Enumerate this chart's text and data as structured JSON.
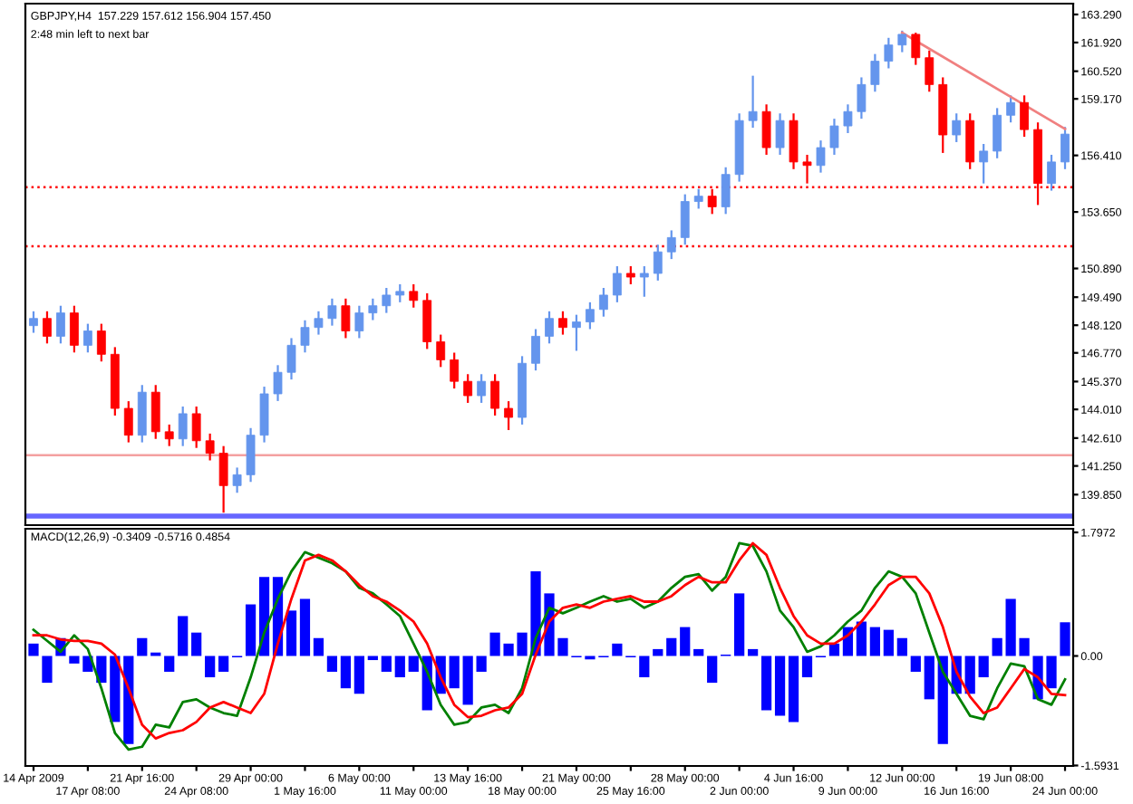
{
  "chart_data": [
    {
      "type": "candlestick",
      "title": "GBPJPY,H4  157.229 157.612 156.904 157.450",
      "subtitle": "2:48 min left to next bar",
      "categories": [
        null,
        null,
        null,
        null,
        null,
        null,
        null,
        null,
        null,
        null,
        null,
        null,
        null,
        null,
        null,
        null,
        null,
        null,
        null,
        null,
        null,
        null,
        null,
        null,
        null,
        null,
        null,
        null,
        null,
        null,
        null,
        null,
        null,
        null,
        null,
        null,
        null,
        null,
        null,
        null,
        null,
        null,
        null,
        null,
        null,
        null,
        null,
        null,
        null,
        null,
        null,
        null,
        null,
        null,
        null,
        null,
        null,
        null,
        null,
        null,
        null,
        null,
        null,
        null,
        null,
        null,
        null,
        null,
        null,
        null,
        null,
        null,
        null,
        null,
        null,
        null,
        null
      ],
      "ohlc": [
        [
          148.1,
          148.8,
          147.75,
          148.45
        ],
        [
          148.45,
          148.8,
          147.23,
          147.58
        ],
        [
          147.58,
          149.07,
          147.23,
          148.72
        ],
        [
          148.72,
          149.07,
          146.79,
          147.14
        ],
        [
          147.14,
          148.19,
          146.79,
          147.84
        ],
        [
          147.84,
          148.19,
          146.35,
          146.7
        ],
        [
          146.7,
          147.05,
          143.71,
          144.06
        ],
        [
          144.06,
          144.41,
          142.4,
          142.75
        ],
        [
          142.75,
          145.2,
          142.4,
          144.85
        ],
        [
          144.85,
          145.2,
          142.57,
          142.92
        ],
        [
          142.92,
          143.27,
          142.22,
          142.57
        ],
        [
          142.57,
          144.15,
          142.22,
          143.8
        ],
        [
          143.8,
          144.15,
          142.13,
          142.48
        ],
        [
          142.48,
          142.83,
          141.52,
          141.87
        ],
        [
          141.87,
          142.22,
          138.97,
          140.29
        ],
        [
          140.29,
          141.17,
          139.94,
          140.82
        ],
        [
          140.82,
          143.1,
          140.47,
          142.75
        ],
        [
          142.75,
          145.12,
          142.4,
          144.77
        ],
        [
          144.77,
          146.17,
          144.42,
          145.82
        ],
        [
          145.82,
          147.49,
          145.47,
          147.14
        ],
        [
          147.14,
          148.36,
          146.79,
          148.01
        ],
        [
          148.01,
          148.8,
          147.66,
          148.45
        ],
        [
          148.45,
          149.42,
          148.1,
          149.07
        ],
        [
          149.07,
          149.42,
          147.49,
          147.84
        ],
        [
          147.84,
          149.07,
          147.49,
          148.72
        ],
        [
          148.72,
          149.42,
          148.37,
          149.07
        ],
        [
          149.07,
          149.94,
          148.72,
          149.59
        ],
        [
          149.59,
          150.12,
          149.24,
          149.77
        ],
        [
          149.77,
          150.12,
          148.98,
          149.33
        ],
        [
          149.33,
          149.68,
          146.96,
          147.31
        ],
        [
          147.31,
          147.66,
          146.08,
          146.43
        ],
        [
          146.43,
          146.78,
          145.03,
          145.38
        ],
        [
          145.38,
          145.73,
          144.33,
          144.68
        ],
        [
          144.68,
          145.73,
          144.33,
          145.38
        ],
        [
          145.38,
          145.73,
          143.71,
          144.06
        ],
        [
          144.06,
          144.41,
          143.0,
          143.62
        ],
        [
          143.62,
          146.61,
          143.27,
          146.26
        ],
        [
          146.26,
          147.93,
          145.91,
          147.58
        ],
        [
          147.58,
          148.8,
          147.23,
          148.45
        ],
        [
          148.45,
          148.8,
          147.66,
          148.01
        ],
        [
          148.01,
          148.63,
          146.87,
          148.28
        ],
        [
          148.28,
          149.24,
          147.93,
          148.89
        ],
        [
          148.89,
          149.94,
          148.54,
          149.59
        ],
        [
          149.59,
          151.0,
          149.24,
          150.65
        ],
        [
          150.65,
          151.0,
          150.12,
          150.47
        ],
        [
          150.47,
          151.0,
          149.51,
          150.65
        ],
        [
          150.65,
          152.05,
          150.3,
          151.7
        ],
        [
          151.7,
          152.75,
          151.35,
          152.4
        ],
        [
          152.4,
          154.51,
          152.05,
          154.16
        ],
        [
          154.16,
          154.77,
          153.81,
          154.42
        ],
        [
          154.42,
          154.77,
          153.55,
          153.9
        ],
        [
          153.9,
          155.83,
          153.55,
          155.48
        ],
        [
          155.48,
          158.46,
          155.13,
          158.11
        ],
        [
          158.11,
          160.3,
          157.76,
          158.55
        ],
        [
          158.55,
          158.9,
          156.44,
          156.79
        ],
        [
          156.79,
          158.46,
          156.44,
          158.11
        ],
        [
          158.11,
          158.46,
          155.74,
          156.09
        ],
        [
          156.09,
          156.44,
          155.04,
          155.92
        ],
        [
          155.92,
          157.14,
          155.57,
          156.79
        ],
        [
          156.79,
          158.2,
          156.44,
          157.85
        ],
        [
          157.85,
          158.9,
          157.5,
          158.55
        ],
        [
          158.55,
          160.22,
          158.2,
          159.87
        ],
        [
          159.87,
          161.36,
          159.52,
          161.01
        ],
        [
          161.01,
          162.15,
          160.66,
          161.8
        ],
        [
          161.8,
          162.5,
          161.45,
          162.32
        ],
        [
          162.32,
          162.4,
          160.83,
          161.18
        ],
        [
          161.18,
          161.53,
          159.52,
          159.87
        ],
        [
          159.87,
          160.22,
          156.53,
          157.41
        ],
        [
          157.41,
          158.46,
          157.06,
          158.11
        ],
        [
          158.11,
          158.46,
          155.74,
          156.09
        ],
        [
          156.09,
          156.97,
          155.04,
          156.62
        ],
        [
          156.62,
          158.72,
          156.27,
          158.37
        ],
        [
          158.37,
          159.34,
          158.02,
          158.99
        ],
        [
          158.99,
          159.34,
          157.32,
          157.67
        ],
        [
          157.67,
          158.02,
          153.99,
          155.04
        ],
        [
          155.04,
          156.44,
          154.69,
          156.09
        ],
        [
          156.09,
          157.8,
          155.74,
          157.45
        ]
      ],
      "colors": [
        "#6495ed",
        "#ff0000",
        "#6495ed",
        "#ff0000",
        "#6495ed",
        "#ff0000",
        "#ff0000",
        "#ff0000",
        "#6495ed",
        "#ff0000",
        "#ff0000",
        "#6495ed",
        "#ff0000",
        "#ff0000",
        "#ff0000",
        "#6495ed",
        "#6495ed",
        "#6495ed",
        "#6495ed",
        "#6495ed",
        "#6495ed",
        "#6495ed",
        "#6495ed",
        "#ff0000",
        "#6495ed",
        "#6495ed",
        "#6495ed",
        "#6495ed",
        "#ff0000",
        "#ff0000",
        "#ff0000",
        "#ff0000",
        "#ff0000",
        "#6495ed",
        "#ff0000",
        "#ff0000",
        "#6495ed",
        "#6495ed",
        "#6495ed",
        "#ff0000",
        "#6495ed",
        "#6495ed",
        "#6495ed",
        "#6495ed",
        "#ff0000",
        "#6495ed",
        "#6495ed",
        "#6495ed",
        "#6495ed",
        "#6495ed",
        "#ff0000",
        "#6495ed",
        "#6495ed",
        "#6495ed",
        "#ff0000",
        "#6495ed",
        "#ff0000",
        "#ff0000",
        "#6495ed",
        "#6495ed",
        "#6495ed",
        "#6495ed",
        "#6495ed",
        "#6495ed",
        "#6495ed",
        "#ff0000",
        "#ff0000",
        "#ff0000",
        "#6495ed",
        "#ff0000",
        "#6495ed",
        "#6495ed",
        "#6495ed",
        "#ff0000",
        "#ff0000",
        "#6495ed",
        "#6495ed"
      ],
      "series": [
        {
          "type": "line",
          "color": "#f08080",
          "values": [
            null,
            null,
            null,
            null,
            null,
            null,
            null,
            null,
            null,
            null,
            null,
            null,
            null,
            null,
            null,
            null,
            null,
            null,
            null,
            null,
            null,
            null,
            null,
            null,
            null,
            null,
            null,
            null,
            null,
            null,
            null,
            null,
            null,
            null,
            null,
            null,
            null,
            null,
            null,
            null,
            null,
            null,
            null,
            null,
            null,
            null,
            null,
            null,
            null,
            null,
            null,
            null,
            null,
            null,
            null,
            null,
            null,
            null,
            null,
            null,
            null,
            null,
            null,
            null,
            162.4,
            null,
            null,
            null,
            null,
            null,
            null,
            null,
            null,
            null,
            null,
            null,
            157.7
          ]
        }
      ],
      "ref_lines": [
        {
          "axis": "y",
          "value": 154.86,
          "label": null,
          "color": "#ff0000",
          "line_style": "dotted"
        },
        {
          "axis": "y",
          "value": 151.97,
          "label": null,
          "color": "#ff0000",
          "line_style": "dotted"
        },
        {
          "axis": "y",
          "value": 141.78,
          "label": null,
          "color": "#f4a0a0",
          "line_style": "solid"
        },
        {
          "axis": "y",
          "value": 138.8,
          "label": null,
          "color": "#6666ff",
          "line_style": "solid"
        }
      ],
      "ylim": [
        138.36,
        163.82
      ],
      "yticks": [
        {
          "value": 163.29,
          "label": "163.290"
        },
        {
          "value": 161.92,
          "label": "161.920"
        },
        {
          "value": 160.52,
          "label": "160.520"
        },
        {
          "value": 159.17,
          "label": "159.170"
        },
        {
          "value": 156.41,
          "label": "156.410"
        },
        {
          "value": 153.65,
          "label": "153.650"
        },
        {
          "value": 150.89,
          "label": "150.890"
        },
        {
          "value": 149.49,
          "label": "149.490"
        },
        {
          "value": 148.12,
          "label": "148.120"
        },
        {
          "value": 146.77,
          "label": "146.770"
        },
        {
          "value": 145.37,
          "label": "145.370"
        },
        {
          "value": 144.01,
          "label": "144.010"
        },
        {
          "value": 142.61,
          "label": "142.610"
        },
        {
          "value": 141.25,
          "label": "141.250"
        },
        {
          "value": 139.85,
          "label": "139.850"
        }
      ],
      "tick_labels": "y",
      "grid": false,
      "legend": false
    },
    {
      "type": "bar",
      "title": "MACD(12,26,9) -0.3409 -0.5716 0.4854",
      "categories": [
        "14 Apr 2009",
        null,
        null,
        null,
        "17 Apr 08:00",
        null,
        null,
        null,
        "21 Apr 16:00",
        null,
        null,
        null,
        "24 Apr 08:00",
        null,
        null,
        null,
        "29 Apr 00:00",
        null,
        null,
        null,
        "1 May 16:00",
        null,
        null,
        null,
        "6 May 00:00",
        null,
        null,
        null,
        "11 May 00:00",
        null,
        null,
        null,
        "13 May 16:00",
        null,
        null,
        null,
        "18 May 00:00",
        null,
        null,
        null,
        "21 May 00:00",
        null,
        null,
        null,
        "25 May 16:00",
        null,
        null,
        null,
        "28 May 00:00",
        null,
        null,
        null,
        "2 Jun 00:00",
        null,
        null,
        null,
        "4 Jun 16:00",
        null,
        null,
        null,
        "9 Jun 00:00",
        null,
        null,
        null,
        "12 Jun 00:00",
        null,
        null,
        null,
        "16 Jun 16:00",
        null,
        null,
        null,
        "19 Jun 08:00",
        null,
        null,
        null,
        "24 Jun 00:00"
      ],
      "series": [
        {
          "type": "bar",
          "color": "#0000ff",
          "values": [
            0.18,
            -0.39,
            0.26,
            -0.11,
            -0.23,
            -0.39,
            -0.96,
            -1.28,
            0.26,
            0.05,
            -0.23,
            0.58,
            0.34,
            -0.31,
            -0.23,
            -0.02,
            0.75,
            1.15,
            1.15,
            0.66,
            0.83,
            0.26,
            -0.23,
            -0.47,
            -0.55,
            -0.06,
            -0.23,
            -0.31,
            -0.23,
            -0.79,
            -0.55,
            -0.47,
            -0.71,
            -0.23,
            0.34,
            0.18,
            0.34,
            1.23,
            0.91,
            0.26,
            -0.02,
            -0.05,
            -0.02,
            0.18,
            -0.02,
            -0.31,
            0.1,
            0.26,
            0.42,
            0.1,
            -0.39,
            0.02,
            0.91,
            0.1,
            -0.79,
            -0.87,
            -0.96,
            -0.31,
            -0.02,
            0.18,
            0.42,
            0.5,
            0.42,
            0.38,
            0.26,
            -0.23,
            -0.63,
            -1.28,
            -0.55,
            -0.55,
            -0.31,
            0.26,
            0.83,
            0.26,
            -0.63,
            -0.47,
            0.49
          ]
        },
        {
          "type": "line",
          "color": "#008000",
          "values": [
            0.38,
            0.22,
            0.06,
            0.3,
            0.1,
            -0.47,
            -1.12,
            -1.36,
            -1.32,
            -1.0,
            -1.04,
            -0.67,
            -0.63,
            -0.75,
            -0.83,
            -0.87,
            -0.31,
            0.34,
            0.83,
            1.23,
            1.51,
            1.43,
            1.35,
            1.23,
            0.99,
            0.91,
            0.75,
            0.58,
            0.18,
            -0.23,
            -0.71,
            -1.0,
            -0.96,
            -0.75,
            -0.71,
            -0.83,
            -0.47,
            0.26,
            0.7,
            0.62,
            0.7,
            0.79,
            0.87,
            0.79,
            0.83,
            0.7,
            0.79,
            0.99,
            1.15,
            1.19,
            0.95,
            1.15,
            1.64,
            1.6,
            1.23,
            0.66,
            0.42,
            0.06,
            0.14,
            0.3,
            0.5,
            0.66,
            0.99,
            1.23,
            1.15,
            0.91,
            0.34,
            -0.23,
            -0.55,
            -0.87,
            -0.92,
            -0.47,
            -0.11,
            -0.15,
            -0.63,
            -0.71,
            -0.34
          ]
        },
        {
          "type": "line",
          "color": "#ff0000",
          "values": [
            0.3,
            0.3,
            0.24,
            0.22,
            0.22,
            0.18,
            0.02,
            -0.47,
            -1.0,
            -1.2,
            -1.12,
            -1.08,
            -0.96,
            -0.75,
            -0.67,
            -0.75,
            -0.83,
            -0.55,
            0.18,
            0.83,
            1.39,
            1.47,
            1.39,
            1.23,
            1.03,
            0.87,
            0.79,
            0.66,
            0.5,
            0.18,
            -0.31,
            -0.71,
            -0.89,
            -0.87,
            -0.79,
            -0.75,
            -0.55,
            0.02,
            0.5,
            0.7,
            0.75,
            0.7,
            0.79,
            0.83,
            0.87,
            0.79,
            0.79,
            0.87,
            1.03,
            1.15,
            1.07,
            1.07,
            1.39,
            1.64,
            1.47,
            0.99,
            0.58,
            0.3,
            0.18,
            0.18,
            0.3,
            0.5,
            0.75,
            1.03,
            1.15,
            1.15,
            0.91,
            0.42,
            -0.23,
            -0.59,
            -0.83,
            -0.75,
            -0.47,
            -0.19,
            -0.31,
            -0.55,
            -0.57
          ]
        }
      ],
      "ylim": [
        -1.6,
        1.85
      ],
      "yticks": [
        1.7972,
        {
          "value": 0,
          "label": "0.00"
        },
        -1.5931
      ],
      "grid": false,
      "legend": false
    }
  ]
}
